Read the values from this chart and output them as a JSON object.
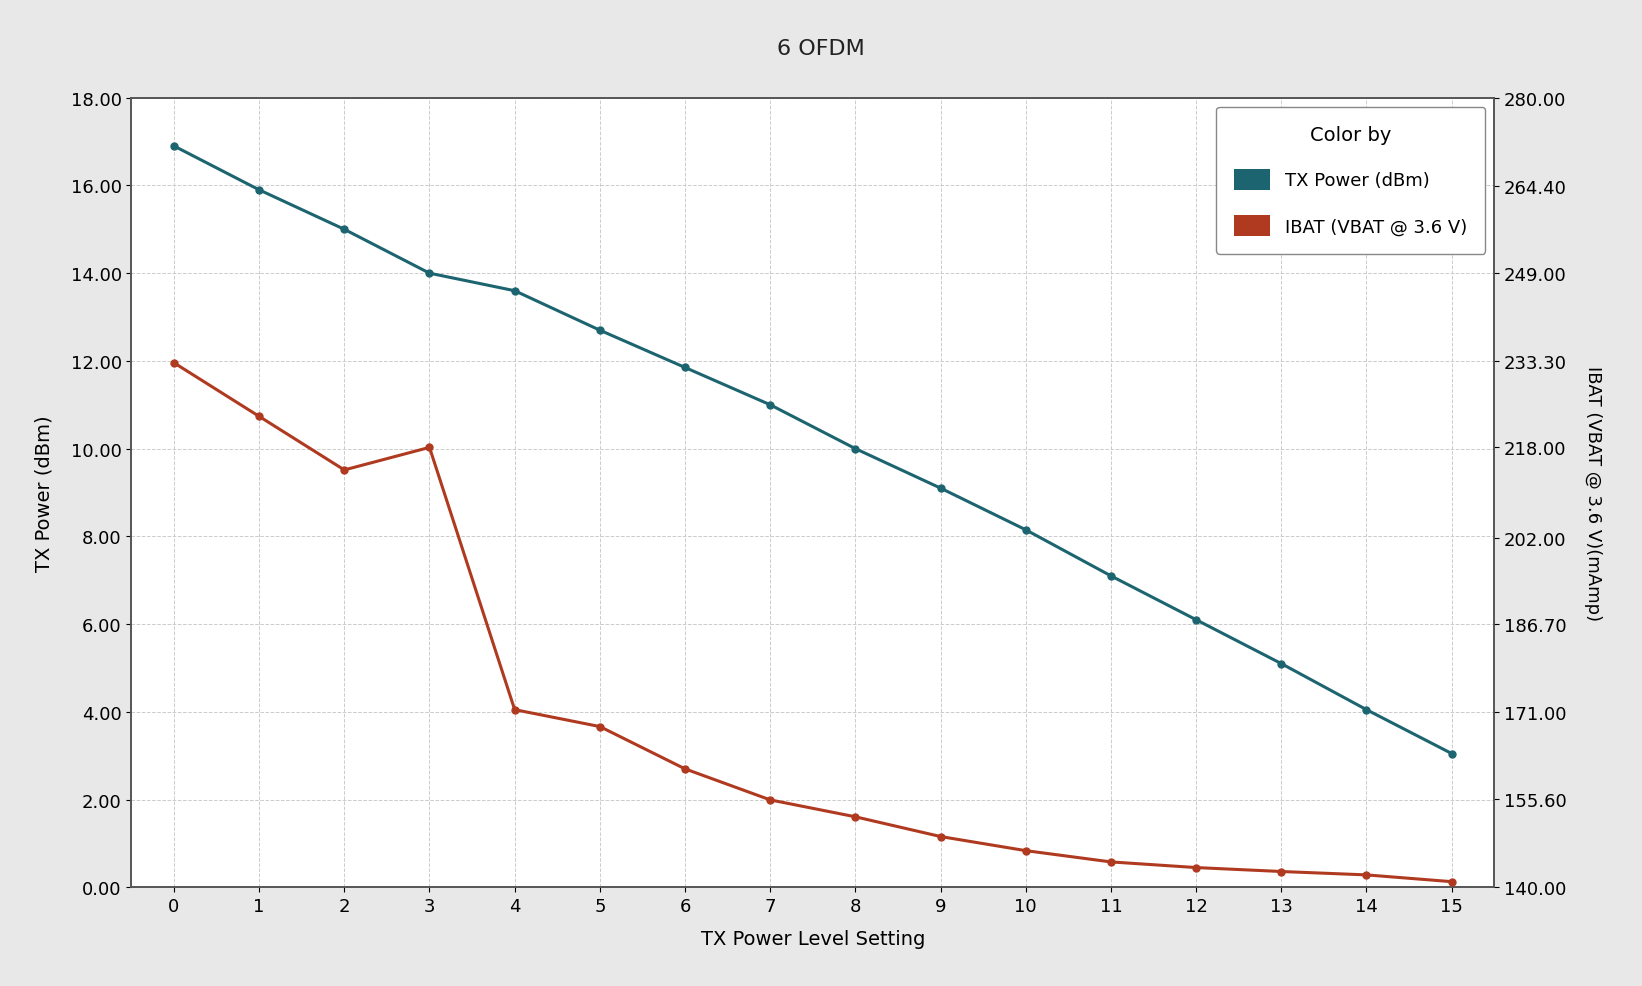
{
  "title": "6 OFDM",
  "xlabel": "TX Power Level Setting",
  "ylabel_left": "TX Power (dBm)",
  "ylabel_right": "IBAT (VBAT @ 3.6 V)(mAmp)",
  "x": [
    0,
    1,
    2,
    3,
    4,
    5,
    6,
    7,
    8,
    9,
    10,
    11,
    12,
    13,
    14,
    15
  ],
  "tx_power": [
    16.9,
    15.9,
    15.0,
    14.0,
    13.6,
    12.7,
    11.85,
    11.0,
    10.0,
    9.1,
    8.15,
    7.1,
    6.1,
    5.1,
    4.05,
    3.05
  ],
  "ibat": [
    233.0,
    223.5,
    214.0,
    218.0,
    171.5,
    168.5,
    161.0,
    155.5,
    152.5,
    149.0,
    146.5,
    144.5,
    143.5,
    142.8,
    142.2,
    141.0
  ],
  "tx_power_color": "#1c6570",
  "ibat_color": "#b03a20",
  "legend_title": "Color by",
  "legend_tx": "TX Power (dBm)",
  "legend_ibat": "IBAT (VBAT @ 3.6 V)",
  "ylim_left": [
    0.0,
    18.0
  ],
  "ylim_right": [
    140.0,
    280.0
  ],
  "yticks_left": [
    0.0,
    2.0,
    4.0,
    6.0,
    8.0,
    10.0,
    12.0,
    14.0,
    16.0,
    18.0
  ],
  "yticks_right": [
    140.0,
    155.6,
    171.0,
    186.7,
    202.0,
    218.0,
    233.3,
    249.0,
    264.4,
    280.0
  ],
  "background_color": "#e8e8e8",
  "plot_bg_color": "#ffffff",
  "title_bg_color": "#d0d0d0",
  "grid_color": "#cccccc",
  "grid_linestyle": "--",
  "spine_color": "#555555"
}
